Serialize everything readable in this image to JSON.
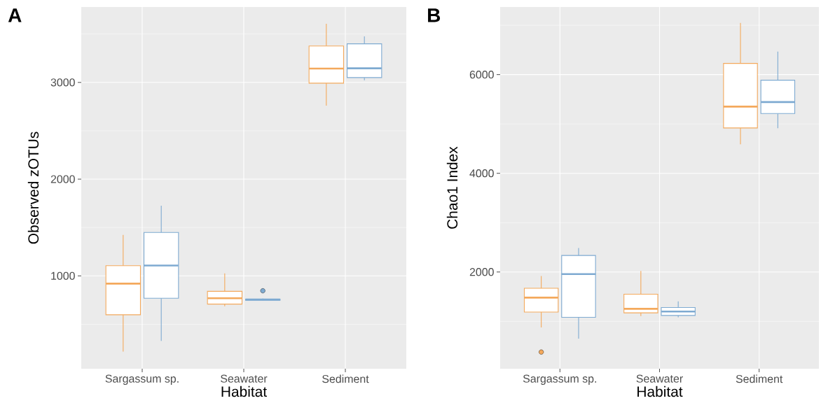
{
  "chart_data": [
    {
      "type": "box",
      "title": "A",
      "xlabel": "Habitat",
      "ylabel": "Observed zOTUs",
      "categories": [
        "Sargassum sp.",
        "Seawater",
        "Sediment"
      ],
      "ylim": [
        40,
        3780
      ],
      "yticks": [
        {
          "value": 500,
          "label": null
        },
        1000,
        {
          "value": 1500,
          "label": null
        },
        2000,
        {
          "value": 2500,
          "label": null
        },
        3000,
        {
          "value": 3500,
          "label": null
        }
      ],
      "grid": true,
      "series": [
        {
          "color": "#f4a95c",
          "boxes": [
            {
              "low": 218,
              "q1": 598,
              "median": 920,
              "q3": 1105,
              "high": 1424
            },
            {
              "low": 686,
              "q1": 708,
              "median": 769,
              "q3": 840,
              "high": 1025
            },
            {
              "low": 2760,
              "q1": 2992,
              "median": 3143,
              "q3": 3377,
              "high": 3606
            }
          ]
        },
        {
          "color": "#7eaad1",
          "boxes": [
            {
              "low": 328,
              "q1": 769,
              "median": 1107,
              "q3": 1449,
              "high": 1725
            },
            {
              "low": 745,
              "q1": 748,
              "median": 755,
              "q3": 760,
              "high": 765,
              "outliers": [
                846
              ]
            },
            {
              "low": 3022,
              "q1": 3050,
              "median": 3146,
              "q3": 3399,
              "high": 3477
            }
          ]
        }
      ]
    },
    {
      "type": "box",
      "title": "B",
      "xlabel": "Habitat",
      "ylabel": "Chao1 Index",
      "categories": [
        "Sargassum sp.",
        "Seawater",
        "Sediment"
      ],
      "ylim": [
        40,
        7370
      ],
      "yticks": [
        {
          "value": 1000,
          "label": null
        },
        2000,
        {
          "value": 3000,
          "label": null
        },
        4000,
        {
          "value": 5000,
          "label": null
        },
        6000,
        {
          "value": 7000,
          "label": null
        }
      ],
      "grid": true,
      "series": [
        {
          "color": "#f4a95c",
          "boxes": [
            {
              "low": 876,
              "q1": 1189,
              "median": 1481,
              "q3": 1670,
              "high": 1919,
              "outliers": [
                378
              ]
            },
            {
              "low": 1108,
              "q1": 1173,
              "median": 1254,
              "q3": 1551,
              "high": 2022
            },
            {
              "low": 4589,
              "q1": 4919,
              "median": 5351,
              "q3": 6227,
              "high": 7049
            }
          ]
        },
        {
          "color": "#7eaad1",
          "boxes": [
            {
              "low": 649,
              "q1": 1081,
              "median": 1957,
              "q3": 2335,
              "high": 2486
            },
            {
              "low": 1081,
              "q1": 1119,
              "median": 1200,
              "q3": 1281,
              "high": 1405
            },
            {
              "low": 4914,
              "q1": 5211,
              "median": 5443,
              "q3": 5886,
              "high": 6465
            }
          ]
        }
      ]
    }
  ]
}
